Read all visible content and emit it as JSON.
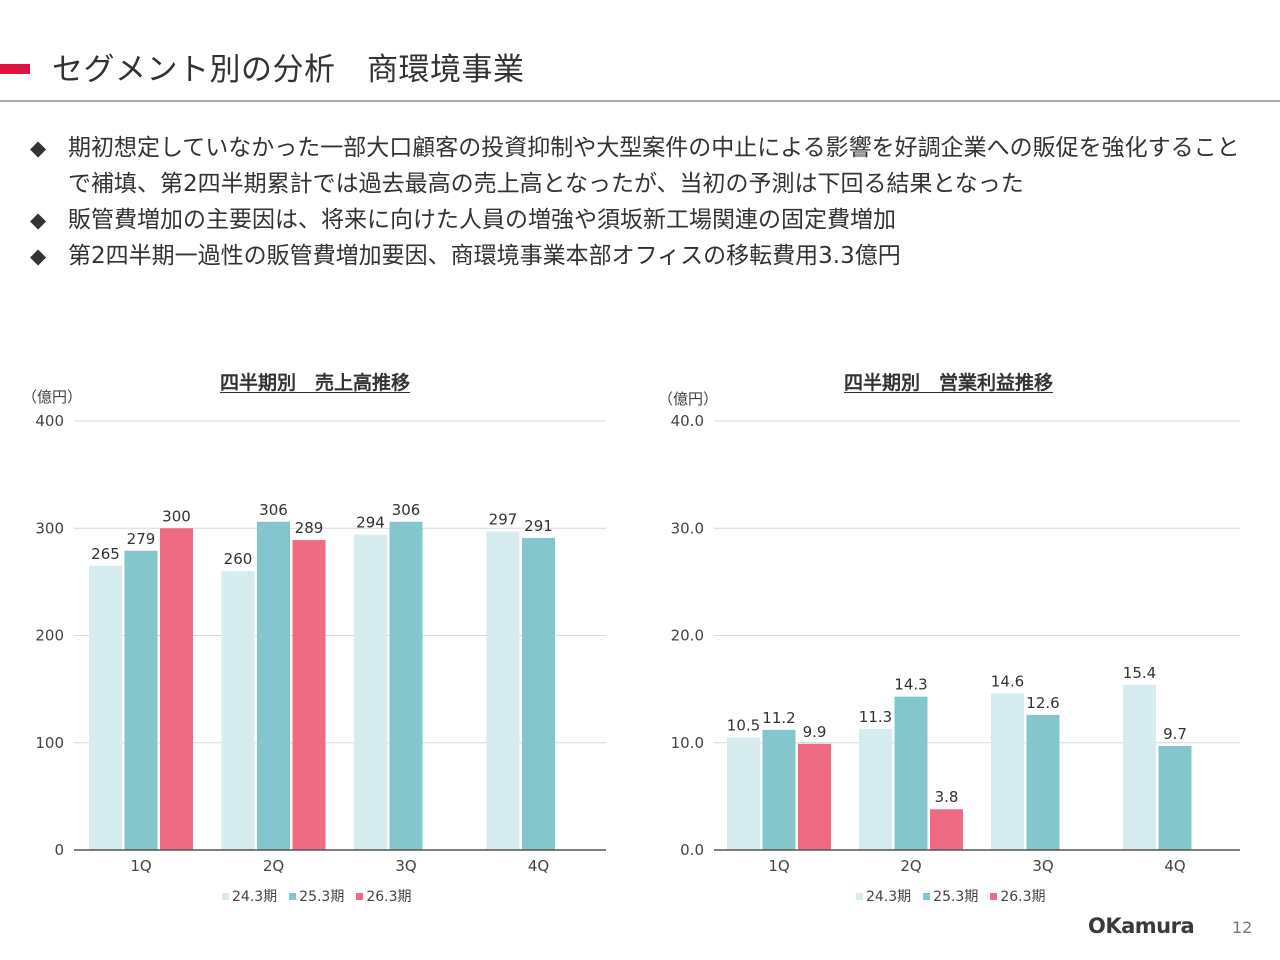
{
  "header": {
    "title": "セグメント別の分析　商環境事業"
  },
  "bullets": [
    "期初想定していなかった一部大口顧客の投資抑制や大型案件の中止による影響を好調企業への販促を強化することで補填、第2四半期累計では過去最高の売上高となったが、当初の予測は下回る結果となった",
    "販管費増加の主要因は、将来に向けた人員の増強や須坂新工場関連の固定費増加",
    "第2四半期一過性の販管費増加要因、商環境事業本部オフィスの移転費用3.3億円"
  ],
  "bullet_marker": "◆",
  "colors": {
    "accent": "#e0103f",
    "s24": "#d6ecef",
    "s25": "#83c7cc",
    "s26": "#ef6b84",
    "grid": "#d9d9d9",
    "axis": "#555555"
  },
  "chart_data": [
    {
      "type": "bar",
      "title": "四半期別　売上高推移",
      "unit": "（億円）",
      "categories": [
        "1Q",
        "2Q",
        "3Q",
        "4Q"
      ],
      "series": [
        {
          "name": "24.3期",
          "values": [
            265,
            260,
            294,
            297
          ]
        },
        {
          "name": "25.3期",
          "values": [
            279,
            306,
            306,
            291
          ]
        },
        {
          "name": "26.3期",
          "values": [
            300,
            289,
            null,
            null
          ]
        }
      ],
      "ylim": [
        0,
        400
      ],
      "yticks": [
        "0",
        "100",
        "200",
        "300",
        "400"
      ],
      "value_labels": [
        [
          "265",
          "260",
          "294",
          "297"
        ],
        [
          "279",
          "306",
          "306",
          "291"
        ],
        [
          "300",
          "289",
          "",
          ""
        ]
      ],
      "grid": true,
      "legend_position": "bottom"
    },
    {
      "type": "bar",
      "title": "四半期別　営業利益推移",
      "unit": "（億円）",
      "categories": [
        "1Q",
        "2Q",
        "3Q",
        "4Q"
      ],
      "series": [
        {
          "name": "24.3期",
          "values": [
            10.5,
            11.3,
            14.6,
            15.4
          ]
        },
        {
          "name": "25.3期",
          "values": [
            11.2,
            14.3,
            12.6,
            9.7
          ]
        },
        {
          "name": "26.3期",
          "values": [
            9.9,
            3.8,
            null,
            null
          ]
        }
      ],
      "ylim": [
        0,
        40
      ],
      "yticks": [
        "0.0",
        "10.0",
        "20.0",
        "30.0",
        "40.0"
      ],
      "value_labels": [
        [
          "10.5",
          "11.3",
          "14.6",
          "15.4"
        ],
        [
          "11.2",
          "14.3",
          "12.6",
          "9.7"
        ],
        [
          "9.9",
          "3.8",
          "",
          ""
        ]
      ],
      "grid": true,
      "legend_position": "bottom"
    }
  ],
  "footer": {
    "logo": "OKamura",
    "page_number": "12"
  }
}
